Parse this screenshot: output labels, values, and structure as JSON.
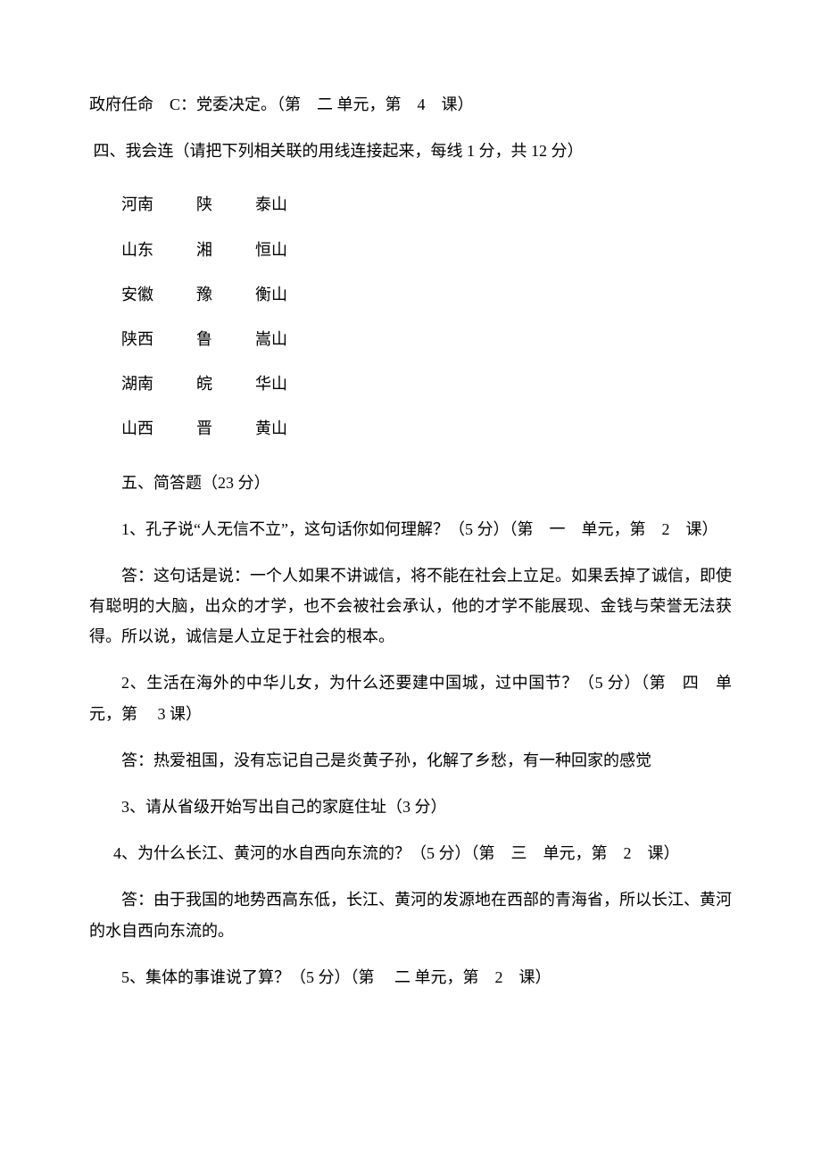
{
  "line1": "政府任命 C：党委决定。（第 二 单元，第 4 课）",
  "section4_title": " 四、我会连（请把下列相关联的用线连接起来，每线 1 分，共 12 分）",
  "match_rows": [
    [
      "河南",
      "陕",
      "泰山"
    ],
    [
      "山东",
      "湘",
      "恒山"
    ],
    [
      "安徽",
      "豫",
      "衡山"
    ],
    [
      "陕西",
      "鲁",
      "嵩山"
    ],
    [
      "湖南",
      "皖",
      "华山"
    ],
    [
      "山西",
      "晋",
      "黄山"
    ]
  ],
  "section5_title": "五、简答题（23 分）",
  "q1": "1、孔子说“人无信不立”，这句话你如何理解？（5 分）（第 一 单元，第 2 课）",
  "a1": "答：这句话是说：一个人如果不讲诚信，将不能在社会上立足。如果丢掉了诚信，即使有聪明的大脑，出众的才学，也不会被社会承认，他的才学不能展现、金钱与荣誉无法获得。所以说，诚信是人立足于社会的根本。",
  "q2": "2、生活在海外的中华儿女，为什么还要建中国城，过中国节？（5 分）（第 四 单元，第  3 课）",
  "a2": "答：热爱祖国，没有忘记自己是炎黄子孙，化解了乡愁，有一种回家的感觉",
  "q3": "3、请从省级开始写出自己的家庭住址（3 分）",
  "q4": "4、为什么长江、黄河的水自西向东流的？（5 分）（第 三 单元，第 2 课）",
  "a4": "答：由于我国的地势西高东低，长江、黄河的发源地在西部的青海省，所以长江、黄河的水自西向东流的。",
  "q5": "5、集体的事谁说了算？（5 分）（第  二 单元，第 2 课）"
}
